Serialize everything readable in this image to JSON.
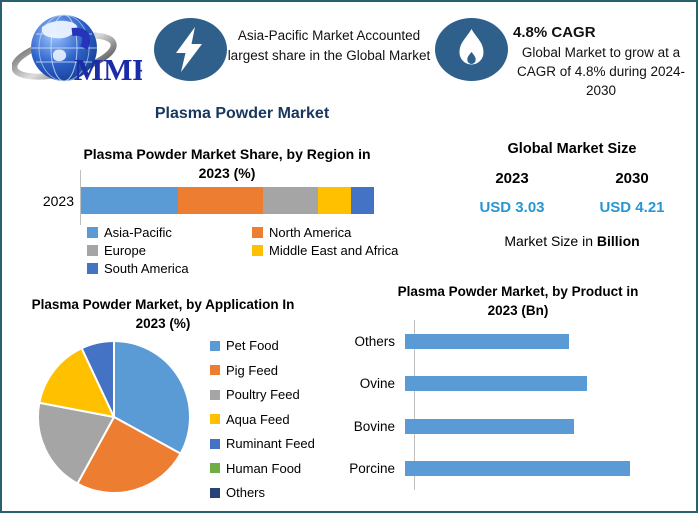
{
  "colors": {
    "border": "#28606E",
    "title_navy": "#17375E",
    "badge_blue": "#2F608C",
    "usd_blue": "#2796D3",
    "axis_gray": "#BFBFBF",
    "product_bar": "#5B9BD5",
    "palette": [
      "#5B9BD5",
      "#ED7D31",
      "#A5A5A5",
      "#FFC000",
      "#4472C4",
      "#70AD47",
      "#264478"
    ]
  },
  "header": {
    "logo_text": "MMR",
    "highlight_icon": "lightning-icon",
    "highlight_text": "Asia-Pacific Market Accounted largest share in the Global Market",
    "cagr_icon": "flame-icon",
    "cagr_title": "4.8% CAGR",
    "cagr_text": "Global Market to grow at a CAGR of 4.8% during 2024-2030"
  },
  "page_title": "Plasma Powder Market",
  "market_size": {
    "title": "Global Market Size",
    "year_start": "2023",
    "year_end": "2030",
    "value_start": "USD 3.03",
    "value_end": "USD 4.21",
    "note_prefix": "Market Size in ",
    "note_bold": "Billion"
  },
  "chart_data": [
    {
      "type": "bar",
      "subtype": "stacked-horizontal",
      "title": "Plasma Powder Market Share, by Region in 2023 (%)",
      "row_label": "2023",
      "categories": [
        "Asia-Pacific",
        "North America",
        "Europe",
        "Middle East and Africa",
        "South America"
      ],
      "values": [
        33,
        29,
        19,
        11,
        8
      ],
      "unit": "%",
      "legend_position": "bottom",
      "grid": false,
      "note": "segment shares estimated from segment widths"
    },
    {
      "type": "pie",
      "title": "Plasma Powder Market, by Application In 2023 (%)",
      "categories": [
        "Pet Food",
        "Pig Feed",
        "Poultry Feed",
        "Aqua Feed",
        "Ruminant Feed",
        "Human Food",
        "Others"
      ],
      "values": [
        33,
        25,
        20,
        15,
        7,
        0,
        0
      ],
      "unit": "%",
      "legend_position": "right",
      "note": "values estimated from slice angles; Human Food and Others slices not visible in pie"
    },
    {
      "type": "bar",
      "subtype": "horizontal",
      "title": "Plasma Powder  Market, by Product in 2023 (Bn)",
      "categories": [
        "Others",
        "Ovine",
        "Bovine",
        "Porcine"
      ],
      "values": [
        73,
        81,
        75,
        100
      ],
      "unit": "relative bar length, % of longest (no axis labels shown)",
      "grid": false
    }
  ]
}
